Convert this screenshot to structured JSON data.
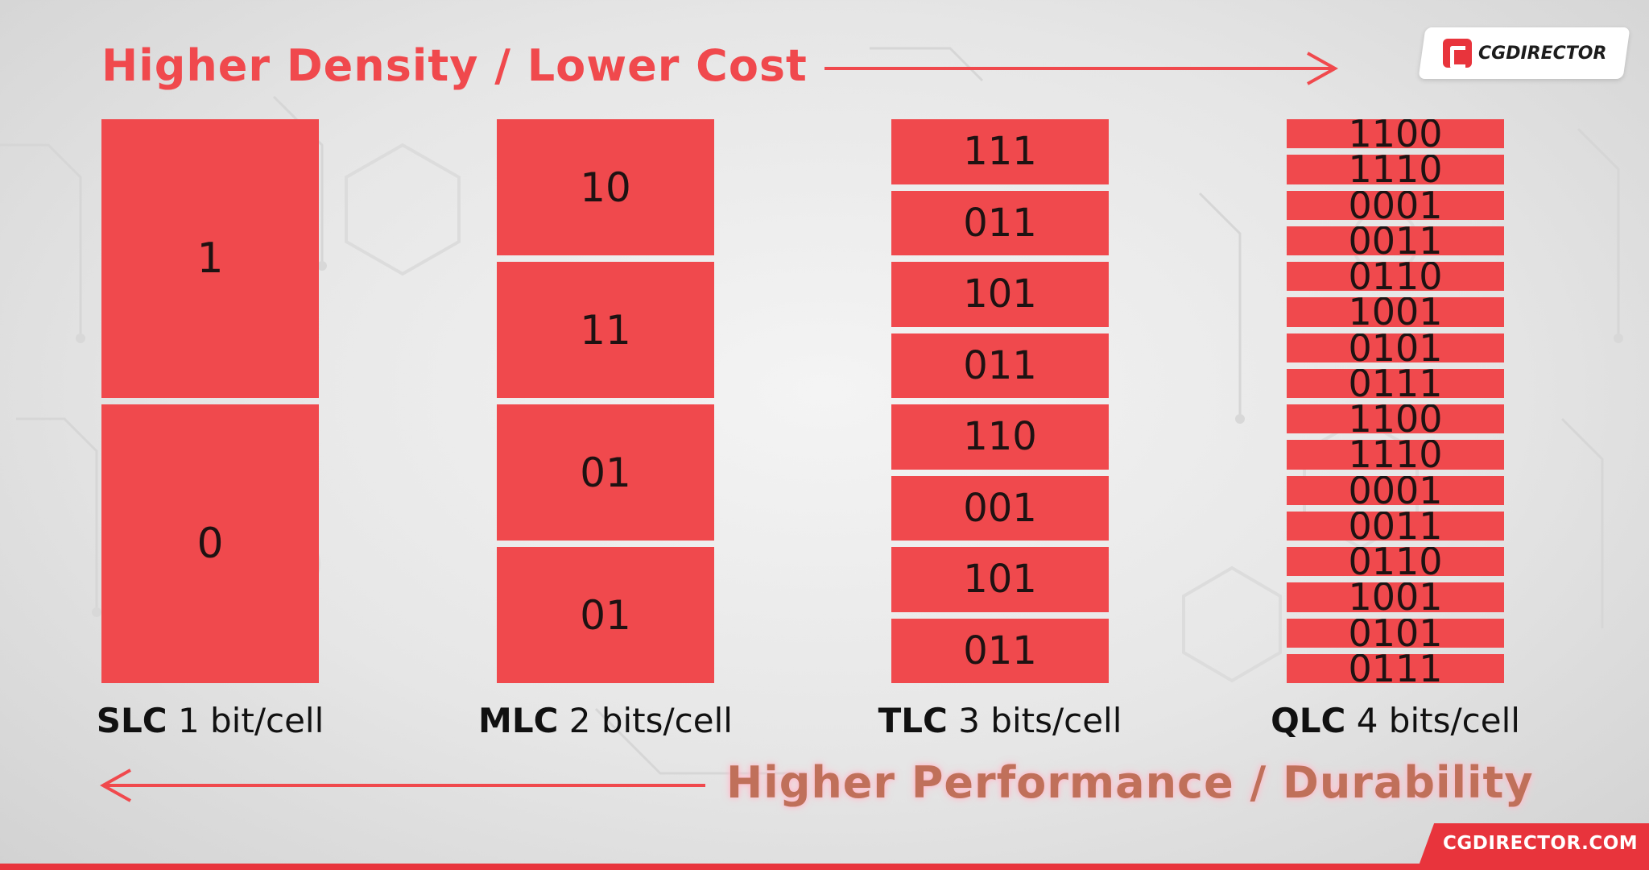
{
  "top_label": "Higher Density / Lower Cost",
  "bottom_label": "Higher Performance / Durability",
  "brand": {
    "logo_text": "CGDIRECTOR",
    "site": "CGDIRECTOR.COM",
    "accent": "#f0494d"
  },
  "columns": [
    {
      "type": "SLC",
      "desc": "1 bit/cell",
      "cells": [
        "1",
        "0"
      ]
    },
    {
      "type": "MLC",
      "desc": "2 bits/cell",
      "cells": [
        "10",
        "11",
        "01",
        "01"
      ]
    },
    {
      "type": "TLC",
      "desc": "3 bits/cell",
      "cells": [
        "111",
        "011",
        "101",
        "011",
        "110",
        "001",
        "101",
        "011"
      ]
    },
    {
      "type": "QLC",
      "desc": "4 bits/cell",
      "cells": [
        "1100",
        "1110",
        "0001",
        "0011",
        "0110",
        "1001",
        "0101",
        "0111",
        "1100",
        "1110",
        "0001",
        "0011",
        "0110",
        "1001",
        "0101",
        "0111"
      ]
    }
  ]
}
